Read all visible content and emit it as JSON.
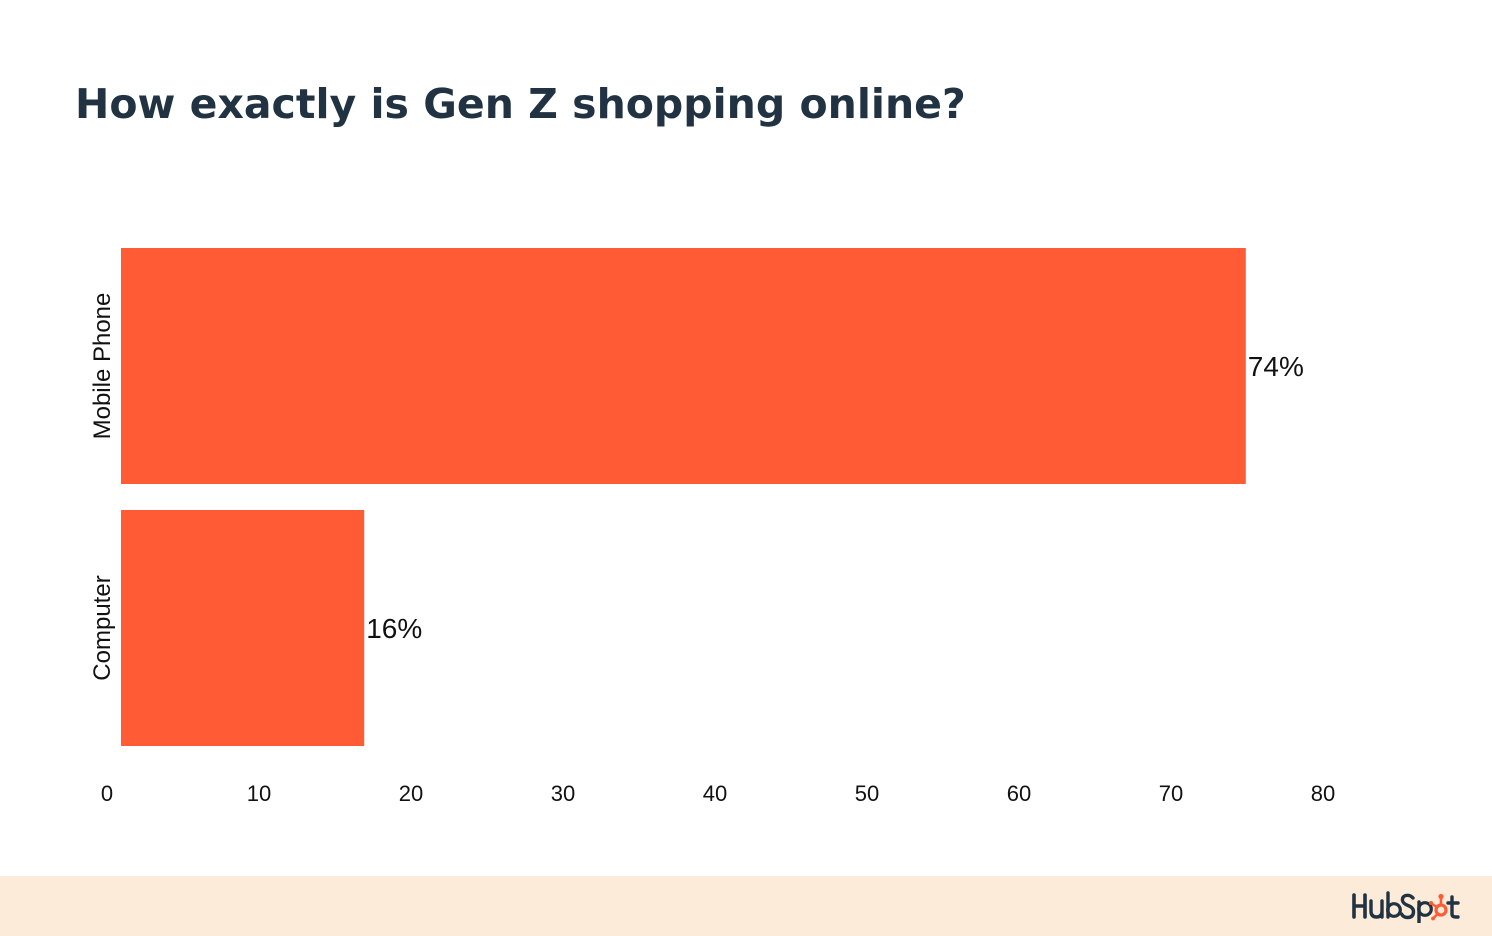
{
  "title": "How exactly is Gen Z shopping online?",
  "chart_data": {
    "type": "bar",
    "orientation": "horizontal",
    "title": "How exactly is Gen Z shopping online?",
    "categories": [
      "Mobile Phone",
      "Computer"
    ],
    "values": [
      74,
      16
    ],
    "data_labels": [
      "74%",
      "16%"
    ],
    "x_ticks": [
      0,
      10,
      20,
      30,
      40,
      50,
      60,
      70,
      80
    ],
    "xlim": [
      0,
      80
    ],
    "xlabel": "",
    "ylabel": "",
    "grid": false,
    "legend": "none",
    "bar_color": "#ff5c35"
  },
  "brand": {
    "logo_text": "HubSpot",
    "logo_icon": "hubspot-sprocket-icon",
    "logo_color": "#213343",
    "accent_color": "#ff5c35",
    "footer_color": "#fcebd9"
  }
}
